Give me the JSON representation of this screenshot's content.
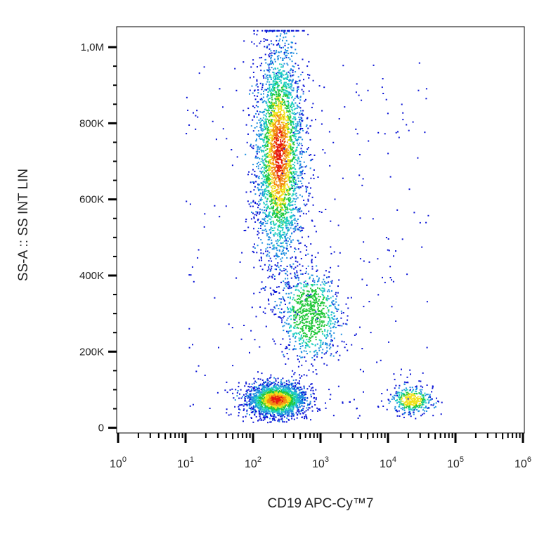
{
  "chart_data": {
    "type": "scatter",
    "subtype": "flow-cytometry-density-dot-plot",
    "xlabel": "CD19 APC-Cy™7",
    "ylabel": "SS-A :: SS INT LIN",
    "x_scale": "log",
    "y_scale": "linear",
    "xlim": [
      1,
      1000000
    ],
    "ylim": [
      -10000,
      1050000
    ],
    "x_ticks": [
      {
        "value": 1,
        "base": "10",
        "exp": "0"
      },
      {
        "value": 10,
        "base": "10",
        "exp": "1"
      },
      {
        "value": 100,
        "base": "10",
        "exp": "2"
      },
      {
        "value": 1000,
        "base": "10",
        "exp": "3"
      },
      {
        "value": 10000,
        "base": "10",
        "exp": "4"
      },
      {
        "value": 100000,
        "base": "10",
        "exp": "5"
      },
      {
        "value": 1000000,
        "base": "10",
        "exp": "6"
      }
    ],
    "y_ticks": [
      {
        "value": 0,
        "label": "0"
      },
      {
        "value": 200000,
        "label": "200K"
      },
      {
        "value": 400000,
        "label": "400K"
      },
      {
        "value": 600000,
        "label": "600K"
      },
      {
        "value": 800000,
        "label": "800K"
      },
      {
        "value": 1000000,
        "label": "1,0M"
      }
    ],
    "grid": false,
    "legend": "none",
    "color_scale": [
      "#0a14d6",
      "#1f8fe0",
      "#20d0c0",
      "#22c83a",
      "#f2e21a",
      "#f28a12",
      "#e6190f"
    ],
    "populations": [
      {
        "x_center": 220,
        "y_center": 75000,
        "x_spread_decades": 0.22,
        "y_spread": 22000
      },
      {
        "x_center": 240,
        "y_center": 720000,
        "x_spread_decades": 0.18,
        "y_spread": 150000
      },
      {
        "x_center": 700,
        "y_center": 300000,
        "x_spread_decades": 0.22,
        "y_spread": 60000
      },
      {
        "x_center": 22000,
        "y_center": 75000,
        "x_spread_decades": 0.16,
        "y_spread": 18000
      }
    ]
  }
}
